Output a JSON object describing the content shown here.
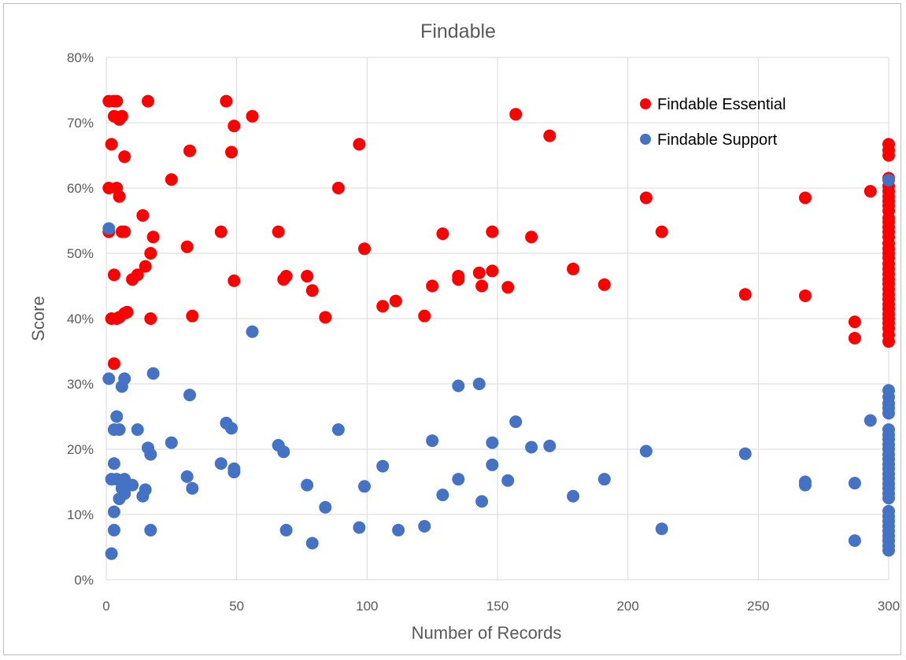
{
  "chart_data": {
    "type": "scatter",
    "title": "Findable",
    "xlabel": "Number of Records",
    "ylabel": "Score",
    "xlim": [
      0,
      300
    ],
    "ylim": [
      0,
      80
    ],
    "x_ticks": [
      "0",
      "50",
      "100",
      "150",
      "200",
      "250",
      "300"
    ],
    "y_ticks": [
      "0%",
      "10%",
      "20%",
      "30%",
      "40%",
      "50%",
      "60%",
      "70%",
      "80%"
    ],
    "grid": true,
    "legend_position": "top-right",
    "series": [
      {
        "name": "Findable Essential",
        "color": "#ff0000",
        "points": [
          [
            1,
            73.3
          ],
          [
            3,
            73.3
          ],
          [
            4,
            73.3
          ],
          [
            16,
            73.3
          ],
          [
            46,
            73.3
          ],
          [
            3,
            71
          ],
          [
            6,
            71
          ],
          [
            5,
            70.5
          ],
          [
            157,
            71.3
          ],
          [
            56,
            71
          ],
          [
            49,
            69.5
          ],
          [
            170,
            68
          ],
          [
            2,
            66.7
          ],
          [
            97,
            66.7
          ],
          [
            32,
            65.7
          ],
          [
            48,
            65.5
          ],
          [
            7,
            64.8
          ],
          [
            25,
            61.3
          ],
          [
            1,
            60
          ],
          [
            4,
            60
          ],
          [
            89,
            60
          ],
          [
            5,
            58.7
          ],
          [
            207,
            58.5
          ],
          [
            268,
            58.5
          ],
          [
            293,
            59.5
          ],
          [
            14,
            55.8
          ],
          [
            18,
            52.5
          ],
          [
            1,
            53.3
          ],
          [
            6,
            53.3
          ],
          [
            7,
            53.3
          ],
          [
            44,
            53.3
          ],
          [
            66,
            53.3
          ],
          [
            129,
            53
          ],
          [
            148,
            53.3
          ],
          [
            163,
            52.5
          ],
          [
            213,
            53.3
          ],
          [
            31,
            51
          ],
          [
            99,
            50.7
          ],
          [
            17,
            50
          ],
          [
            15,
            48
          ],
          [
            12,
            46.7
          ],
          [
            3,
            46.7
          ],
          [
            10,
            46
          ],
          [
            49,
            45.8
          ],
          [
            68,
            46
          ],
          [
            69,
            46.5
          ],
          [
            77,
            46.5
          ],
          [
            135,
            46
          ],
          [
            135,
            46.5
          ],
          [
            143,
            47
          ],
          [
            148,
            47.3
          ],
          [
            179,
            47.6
          ],
          [
            79,
            44.3
          ],
          [
            125,
            45
          ],
          [
            144,
            45
          ],
          [
            154,
            44.8
          ],
          [
            191,
            45.2
          ],
          [
            245,
            43.7
          ],
          [
            268,
            43.5
          ],
          [
            111,
            42.7
          ],
          [
            106,
            41.9
          ],
          [
            8,
            41
          ],
          [
            7,
            40.8
          ],
          [
            2,
            40
          ],
          [
            4,
            40
          ],
          [
            5,
            40.2
          ],
          [
            17,
            40
          ],
          [
            33,
            40.4
          ],
          [
            84,
            40.2
          ],
          [
            122,
            40.4
          ],
          [
            287,
            39.5
          ],
          [
            287,
            37
          ],
          [
            3,
            33.1
          ],
          [
            300,
            66.7
          ],
          [
            300,
            65.8
          ],
          [
            300,
            65
          ],
          [
            300,
            61.5
          ],
          [
            300,
            60.3
          ],
          [
            300,
            59.5
          ],
          [
            300,
            58.7
          ],
          [
            300,
            58
          ],
          [
            300,
            57.3
          ],
          [
            300,
            56.5
          ],
          [
            300,
            55.4
          ],
          [
            300,
            54.8
          ],
          [
            300,
            54
          ],
          [
            300,
            53.3
          ],
          [
            300,
            52.5
          ],
          [
            300,
            51.5
          ],
          [
            300,
            50.7
          ],
          [
            300,
            50
          ],
          [
            300,
            49.3
          ],
          [
            300,
            48.4
          ],
          [
            300,
            47.6
          ],
          [
            300,
            46.8
          ],
          [
            300,
            46
          ],
          [
            300,
            45.3
          ],
          [
            300,
            44.5
          ],
          [
            300,
            43.7
          ],
          [
            300,
            43
          ],
          [
            300,
            42.2
          ],
          [
            300,
            41.5
          ],
          [
            300,
            40.7
          ],
          [
            300,
            40
          ],
          [
            300,
            39.3
          ],
          [
            300,
            38.5
          ],
          [
            300,
            37.5
          ],
          [
            300,
            36.5
          ]
        ]
      },
      {
        "name": "Findable Support",
        "color": "#4472c4",
        "points": [
          [
            1,
            53.8
          ],
          [
            1,
            30.8
          ],
          [
            56,
            38
          ],
          [
            7,
            30.8
          ],
          [
            6,
            29.6
          ],
          [
            18,
            31.6
          ],
          [
            32,
            28.3
          ],
          [
            135,
            29.7
          ],
          [
            143,
            30
          ],
          [
            4,
            25
          ],
          [
            3,
            23
          ],
          [
            5,
            23
          ],
          [
            12,
            23
          ],
          [
            46,
            24
          ],
          [
            48,
            23.2
          ],
          [
            89,
            23
          ],
          [
            157,
            24.2
          ],
          [
            293,
            24.4
          ],
          [
            25,
            21
          ],
          [
            16,
            20.2
          ],
          [
            17,
            19.2
          ],
          [
            66,
            20.6
          ],
          [
            68,
            19.6
          ],
          [
            125,
            21.3
          ],
          [
            148,
            21
          ],
          [
            163,
            20.3
          ],
          [
            170,
            20.5
          ],
          [
            207,
            19.7
          ],
          [
            245,
            19.3
          ],
          [
            3,
            17.8
          ],
          [
            44,
            17.8
          ],
          [
            49,
            17
          ],
          [
            49,
            16.5
          ],
          [
            106,
            17.4
          ],
          [
            148,
            17.6
          ],
          [
            31,
            15.8
          ],
          [
            2,
            15.4
          ],
          [
            4,
            15.4
          ],
          [
            7,
            15.4
          ],
          [
            8,
            14.6
          ],
          [
            10,
            14.5
          ],
          [
            6,
            14
          ],
          [
            15,
            13.8
          ],
          [
            33,
            14
          ],
          [
            77,
            14.5
          ],
          [
            99,
            14.3
          ],
          [
            135,
            15.4
          ],
          [
            154,
            15.2
          ],
          [
            191,
            15.4
          ],
          [
            268,
            15
          ],
          [
            268,
            14.5
          ],
          [
            287,
            14.8
          ],
          [
            14,
            12.8
          ],
          [
            5,
            12.4
          ],
          [
            7,
            13.2
          ],
          [
            129,
            13
          ],
          [
            179,
            12.8
          ],
          [
            144,
            12
          ],
          [
            84,
            11.1
          ],
          [
            3,
            10.4
          ],
          [
            3,
            7.6
          ],
          [
            17,
            7.6
          ],
          [
            69,
            7.6
          ],
          [
            97,
            8
          ],
          [
            112,
            7.6
          ],
          [
            122,
            8.2
          ],
          [
            213,
            7.8
          ],
          [
            79,
            5.6
          ],
          [
            287,
            6
          ],
          [
            2,
            4
          ],
          [
            300,
            61.2
          ],
          [
            300,
            29
          ],
          [
            300,
            28
          ],
          [
            300,
            27
          ],
          [
            300,
            26.3
          ],
          [
            300,
            25.5
          ],
          [
            300,
            23
          ],
          [
            300,
            22.2
          ],
          [
            300,
            21.5
          ],
          [
            300,
            20.7
          ],
          [
            300,
            20
          ],
          [
            300,
            19.2
          ],
          [
            300,
            18.5
          ],
          [
            300,
            17.7
          ],
          [
            300,
            17
          ],
          [
            300,
            16.2
          ],
          [
            300,
            15.5
          ],
          [
            300,
            14.7
          ],
          [
            300,
            14
          ],
          [
            300,
            13.2
          ],
          [
            300,
            12.5
          ],
          [
            300,
            10.5
          ],
          [
            300,
            9.7
          ],
          [
            300,
            9
          ],
          [
            300,
            8.2
          ],
          [
            300,
            7.5
          ],
          [
            300,
            6.7
          ],
          [
            300,
            6
          ],
          [
            300,
            5.2
          ],
          [
            300,
            4.5
          ]
        ]
      }
    ]
  }
}
